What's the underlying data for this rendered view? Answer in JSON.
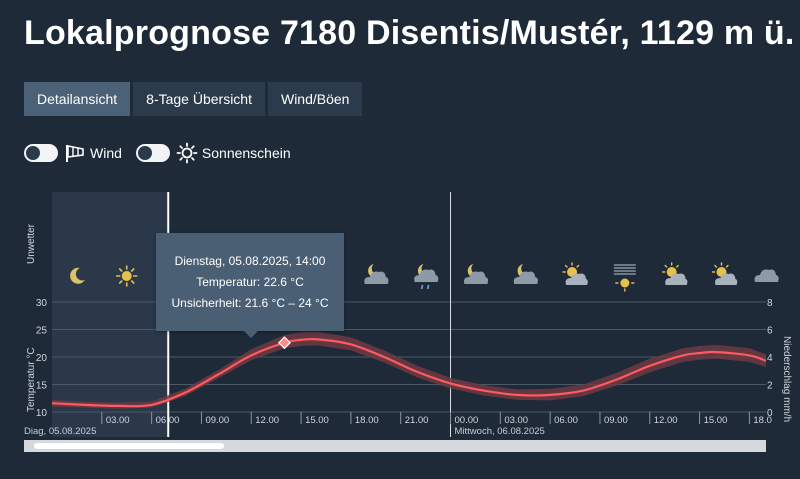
{
  "page": {
    "title": "Lokalprognose 7180 Disentis/Mustér, 1129 m ü."
  },
  "tabs": [
    {
      "label": "Detailansicht",
      "active": true
    },
    {
      "label": "8-Tage Übersicht",
      "active": false
    },
    {
      "label": "Wind/Böen",
      "active": false
    }
  ],
  "toggles": {
    "wind": {
      "label": "Wind",
      "on": false,
      "icon": "windsock-icon"
    },
    "sun": {
      "label": "Sonnenschein",
      "on": false,
      "icon": "sun-icon"
    }
  },
  "colors": {
    "background": "#1e2a38",
    "temp_line": "#ff5a5f",
    "uncertainty_band": "#6e3a44",
    "tooltip_bg": "#4a5f74",
    "night_shade": "#2d3b4d"
  },
  "tooltip": {
    "date": "Dienstag, 05.08.2025, 14:00",
    "temperature": "Temperatur: 22.6 °C",
    "uncertainty": "Unsicherheit: 21.6 °C – 24 °C"
  },
  "chart_data": {
    "type": "line",
    "y_left_label": "Temperatur °C",
    "y_right_label": "Niederschlag mm/h",
    "row_label": "Unwetter",
    "y_left_range": [
      10,
      30
    ],
    "y_left_ticks": [
      10,
      15,
      20,
      25,
      30
    ],
    "y_right_range": [
      0,
      8
    ],
    "y_right_ticks": [
      0,
      2,
      4,
      6,
      8
    ],
    "x_range_hours": [
      0,
      43
    ],
    "x_ticks": [
      "03.00",
      "06.00",
      "09.00",
      "12.00",
      "15.00",
      "18.00",
      "21.00",
      "00.00",
      "03.00",
      "06.00",
      "09.00",
      "12.00",
      "15.00",
      "18.0"
    ],
    "x_tick_hours": [
      3,
      6,
      9,
      12,
      15,
      18,
      21,
      24,
      27,
      30,
      33,
      36,
      39,
      42
    ],
    "day_labels": [
      {
        "text": "Diag, 05.08.2025",
        "hour": 0
      },
      {
        "text": "Mittwoch, 06.08.2025",
        "hour": 24
      }
    ],
    "night_shade_hours": [
      0,
      7
    ],
    "current_time_hour": 7,
    "midnight_hour": 24,
    "highlight": {
      "hour": 14,
      "value": 22.6
    },
    "series": [
      {
        "name": "Temperatur",
        "x": [
          0,
          2,
          4,
          6,
          8,
          10,
          12,
          14,
          15,
          16,
          18,
          20,
          22,
          24,
          26,
          28,
          30,
          32,
          34,
          36,
          38,
          39,
          40,
          42,
          43
        ],
        "values": [
          11.6,
          11.3,
          11.1,
          11.3,
          13.5,
          16.8,
          20.3,
          22.6,
          23.1,
          23.2,
          22.3,
          20.0,
          17.3,
          15.2,
          13.9,
          13.1,
          13.1,
          13.9,
          15.9,
          18.4,
          20.3,
          20.7,
          20.9,
          20.3,
          19.3
        ]
      },
      {
        "name": "Unsicherheit min",
        "x": [
          0,
          2,
          4,
          6,
          8,
          10,
          12,
          14,
          15,
          16,
          18,
          20,
          22,
          24,
          26,
          28,
          30,
          32,
          34,
          36,
          38,
          39,
          40,
          42,
          43
        ],
        "values": [
          11.0,
          10.8,
          10.6,
          10.8,
          12.9,
          16.1,
          19.4,
          21.6,
          22.0,
          22.1,
          21.2,
          19.0,
          16.3,
          14.3,
          13.0,
          12.2,
          12.1,
          12.9,
          14.8,
          17.2,
          19.1,
          19.5,
          19.7,
          19.1,
          18.2
        ]
      },
      {
        "name": "Unsicherheit max",
        "x": [
          0,
          2,
          4,
          6,
          8,
          10,
          12,
          14,
          15,
          16,
          18,
          20,
          22,
          24,
          26,
          28,
          30,
          32,
          34,
          36,
          38,
          39,
          40,
          42,
          43
        ],
        "values": [
          12.2,
          11.9,
          11.7,
          11.9,
          14.2,
          17.6,
          21.4,
          24.0,
          24.5,
          24.6,
          23.6,
          21.2,
          18.4,
          16.2,
          14.9,
          14.1,
          14.2,
          15.0,
          17.1,
          19.7,
          21.6,
          22.0,
          22.2,
          21.6,
          20.5
        ]
      }
    ],
    "weather_icons": [
      {
        "hour": 1.5,
        "icon": "moon-icon"
      },
      {
        "hour": 4.5,
        "icon": "sun-icon"
      },
      {
        "hour": 19.5,
        "icon": "cloud-moon-icon"
      },
      {
        "hour": 22.5,
        "icon": "cloud-moon-rain-icon"
      },
      {
        "hour": 25.5,
        "icon": "cloud-moon-icon"
      },
      {
        "hour": 28.5,
        "icon": "cloud-moon-icon"
      },
      {
        "hour": 31.5,
        "icon": "sun-cloud-icon"
      },
      {
        "hour": 34.5,
        "icon": "fog-sun-icon"
      },
      {
        "hour": 37.5,
        "icon": "sun-cloud-icon"
      },
      {
        "hour": 40.5,
        "icon": "sun-cloud-icon"
      },
      {
        "hour": 43,
        "icon": "cloud-icon"
      }
    ]
  }
}
